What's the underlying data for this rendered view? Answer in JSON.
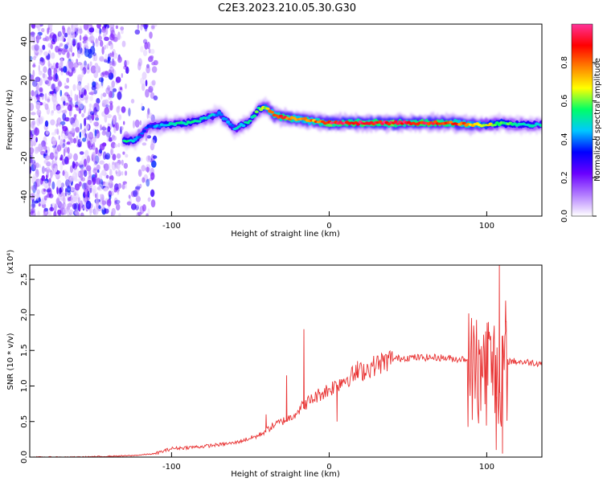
{
  "figure_title": "C2E3.2023.210.05.30.G30",
  "chart_data": [
    {
      "type": "heatmap",
      "xlabel": "Height of straight line (km)",
      "ylabel": "Frequency (Hz)",
      "xlim": [
        -190,
        135
      ],
      "ylim": [
        -50,
        49
      ],
      "x_ticks": [
        -100,
        0,
        100
      ],
      "y_ticks": [
        -40,
        -20,
        0,
        20,
        40
      ],
      "colorbar": {
        "label": "Normalized spectral amplitude",
        "range": [
          0.0,
          1.0
        ],
        "ticks": [
          "0.0",
          "0.2",
          "0.4",
          "0.6",
          "0.8"
        ],
        "colors": [
          "#ffffff",
          "#b27cff",
          "#6a00ff",
          "#0000ff",
          "#00c8ff",
          "#00ff66",
          "#ffff00",
          "#ff8000",
          "#ff0000",
          "#ff3399"
        ]
      },
      "ridge": {
        "x": [
          -130,
          -123,
          -115,
          -105,
          -90,
          -80,
          -70,
          -60,
          -50,
          -45,
          -40,
          -35,
          -30,
          -20,
          -10,
          0,
          20,
          40,
          60,
          80,
          90,
          100,
          110,
          120,
          135
        ],
        "frequency": [
          -11,
          -11,
          -4,
          -3,
          -2,
          0,
          3,
          -5,
          -1,
          5,
          6,
          2,
          1,
          0,
          -1,
          -2,
          -2,
          -2,
          -2,
          -2,
          -3,
          -3,
          -2,
          -3,
          -3
        ],
        "peak_amplitude": [
          0.55,
          0.5,
          0.35,
          0.5,
          0.55,
          0.5,
          0.45,
          0.45,
          0.55,
          0.6,
          0.7,
          0.85,
          0.9,
          0.85,
          0.8,
          0.95,
          0.95,
          0.95,
          0.95,
          0.9,
          0.8,
          0.7,
          0.6,
          0.55,
          0.5
        ]
      },
      "noise_region_x": [
        -190,
        -110
      ]
    },
    {
      "type": "line",
      "xlabel": "Height of straight line (km)",
      "ylabel": "SNR (10 * v/v)",
      "y_multiplier": "(x10⁴)",
      "xlim": [
        -190,
        135
      ],
      "ylim": [
        0,
        2.7
      ],
      "x_ticks": [
        -100,
        0,
        100
      ],
      "y_ticks": [
        "0.0",
        "0.5",
        "1.0",
        "1.5",
        "2.0",
        "2.5"
      ],
      "line_color": "#e83030",
      "series": [
        {
          "x": [
            -190,
            -160,
            -125,
            -110,
            -100,
            -80,
            -60,
            -45,
            -35,
            -25,
            -15,
            -5,
            0,
            10,
            20,
            30,
            40,
            50,
            60,
            70,
            80,
            90,
            95,
            100,
            105,
            110,
            115,
            135
          ],
          "values": [
            0.0,
            0.0,
            0.02,
            0.05,
            0.12,
            0.15,
            0.2,
            0.3,
            0.45,
            0.55,
            0.75,
            0.9,
            0.95,
            1.1,
            1.2,
            1.3,
            1.38,
            1.4,
            1.4,
            1.4,
            1.38,
            1.38,
            1.38,
            1.38,
            1.38,
            1.35,
            1.35,
            1.32
          ],
          "spikes": [
            {
              "x": -40,
              "value": 0.6
            },
            {
              "x": -27,
              "value": 1.15
            },
            {
              "x": -16,
              "value": 1.8
            },
            {
              "x": 5,
              "value": 0.5
            },
            {
              "x": 18,
              "value": 1.35
            },
            {
              "x": 95,
              "value": 1.65
            },
            {
              "x": 101,
              "value": 1.9
            },
            {
              "x": 106,
              "value": 0.1
            },
            {
              "x": 108,
              "value": 2.7
            },
            {
              "x": 110,
              "value": 0.05
            },
            {
              "x": 112,
              "value": 2.2
            }
          ]
        }
      ]
    }
  ]
}
